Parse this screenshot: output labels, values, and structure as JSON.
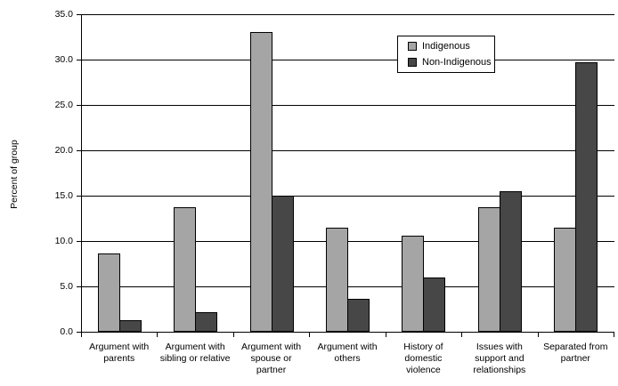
{
  "chart_data": {
    "type": "bar",
    "title": "",
    "xlabel": "",
    "ylabel": "Percent of group",
    "ylim": [
      0,
      35
    ],
    "ytick_step": 5,
    "ytick_labels": [
      "0.0",
      "5.0",
      "10.0",
      "15.0",
      "20.0",
      "25.0",
      "30.0",
      "35.0"
    ],
    "grid": "horizontal",
    "legend_position": "top-center-inside",
    "categories": [
      "Argument with parents",
      "Argument with sibling or relative",
      "Argument with spouse or partner",
      "Argument with others",
      "History of domestic violence",
      "Issues with support and relationships",
      "Separated from partner"
    ],
    "category_label_lines": [
      [
        "Argument with",
        "parents"
      ],
      [
        "Argument with",
        "sibling or relative"
      ],
      [
        "Argument with",
        "spouse or",
        "partner"
      ],
      [
        "Argument with",
        "others"
      ],
      [
        "History of",
        "domestic",
        "violence"
      ],
      [
        "Issues with",
        "support and",
        "relationships"
      ],
      [
        "Separated from",
        "partner"
      ]
    ],
    "series": [
      {
        "name": "Indigenous",
        "color": "#a5a5a5",
        "values": [
          8.6,
          13.7,
          33.0,
          11.5,
          10.6,
          13.7,
          11.5
        ]
      },
      {
        "name": "Non-Indigenous",
        "color": "#474747",
        "values": [
          1.3,
          2.2,
          15.0,
          3.6,
          6.0,
          15.5,
          29.7
        ]
      }
    ]
  }
}
